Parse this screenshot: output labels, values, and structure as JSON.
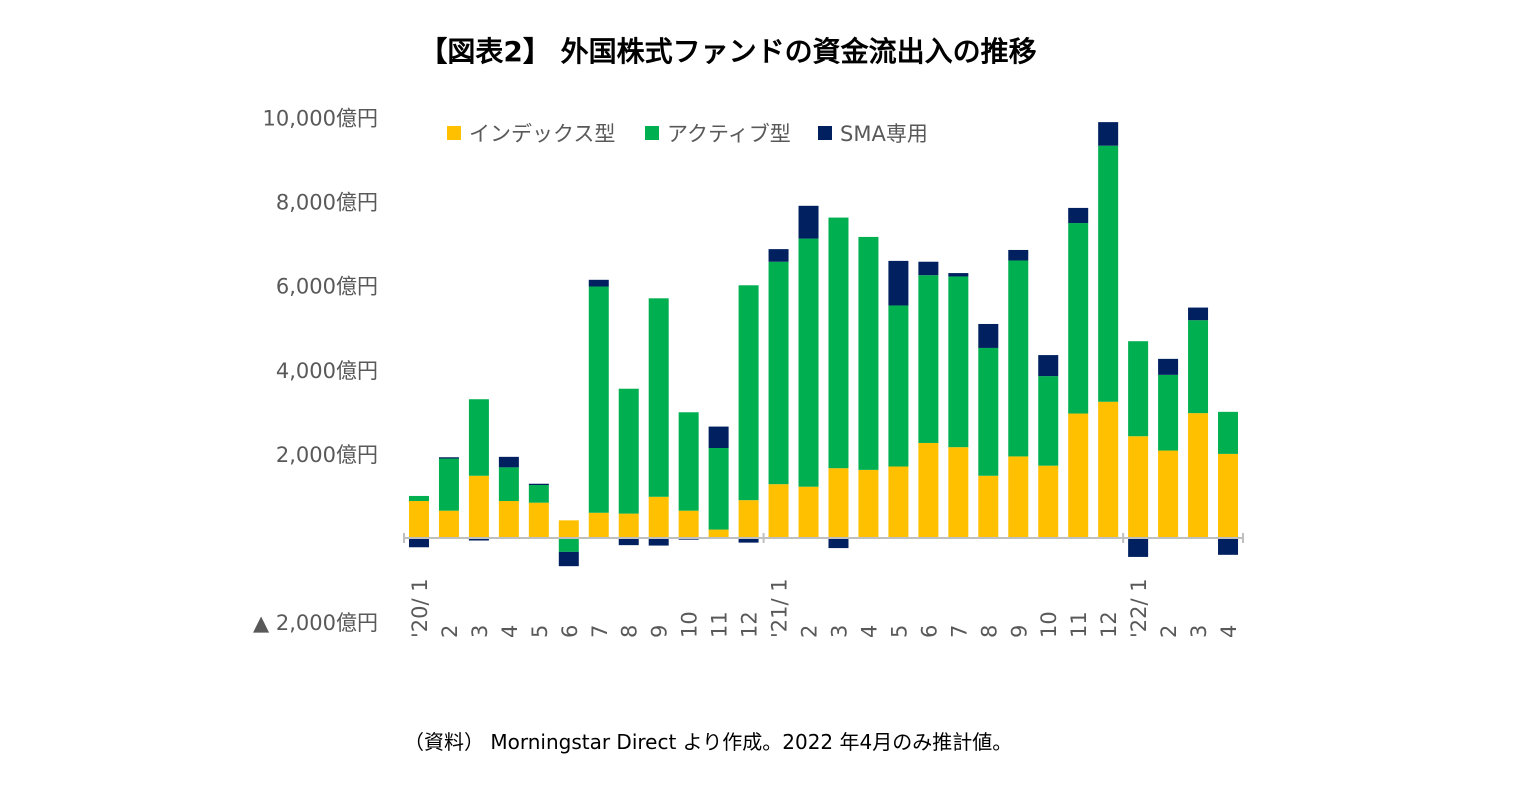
{
  "title": "【図表2】 外国株式ファンドの資金流出入の推移",
  "source_note": "（資料） Morningstar Direct より作成。2022 年4月のみ推計値。",
  "colors": {
    "index": "#ffc000",
    "active": "#00b050",
    "sma": "#002060",
    "axis": "#bfbfbf",
    "label": "#595959"
  },
  "chart_data": {
    "type": "bar",
    "stacked": true,
    "title": "【図表2】 外国株式ファンドの資金流出入の推移",
    "ylim": [
      -2000,
      10000
    ],
    "y_ticks": [
      {
        "value": 10000,
        "label": "10,000億円"
      },
      {
        "value": 8000,
        "label": "8,000億円"
      },
      {
        "value": 6000,
        "label": "6,000億円"
      },
      {
        "value": 4000,
        "label": "4,000億円"
      },
      {
        "value": 2000,
        "label": "2,000億円"
      },
      {
        "value": -2000,
        "label": "▲ 2,000億円"
      }
    ],
    "categories": [
      "'20/ 1",
      "2",
      "3",
      "4",
      "5",
      "6",
      "7",
      "8",
      "9",
      "10",
      "11",
      "12",
      "'21/ 1",
      "2",
      "3",
      "4",
      "5",
      "6",
      "7",
      "8",
      "9",
      "10",
      "11",
      "12",
      "'22/ 1",
      "2",
      "3",
      "4"
    ],
    "legend_position": "top",
    "series": [
      {
        "name": "インデックス型",
        "values": [
          880,
          650,
          1480,
          880,
          840,
          420,
          600,
          580,
          980,
          650,
          200,
          900,
          1280,
          1220,
          1660,
          1620,
          1700,
          2260,
          2160,
          1480,
          1940,
          1720,
          2960,
          3240,
          2420,
          2080,
          2970,
          2000
        ]
      },
      {
        "name": "アクティブ型",
        "values": [
          120,
          1240,
          1820,
          800,
          420,
          -330,
          5380,
          2970,
          4720,
          2340,
          1940,
          5110,
          5290,
          5900,
          5960,
          5540,
          3830,
          3990,
          4060,
          3040,
          4660,
          2130,
          4530,
          6090,
          2260,
          1800,
          2210,
          1000
        ]
      },
      {
        "name": "SMA専用",
        "values": [
          -220,
          30,
          -60,
          250,
          30,
          -340,
          160,
          -170,
          -180,
          -40,
          510,
          -110,
          300,
          780,
          -240,
          0,
          1060,
          320,
          80,
          570,
          250,
          500,
          360,
          560,
          -450,
          380,
          300,
          -400
        ]
      }
    ]
  }
}
